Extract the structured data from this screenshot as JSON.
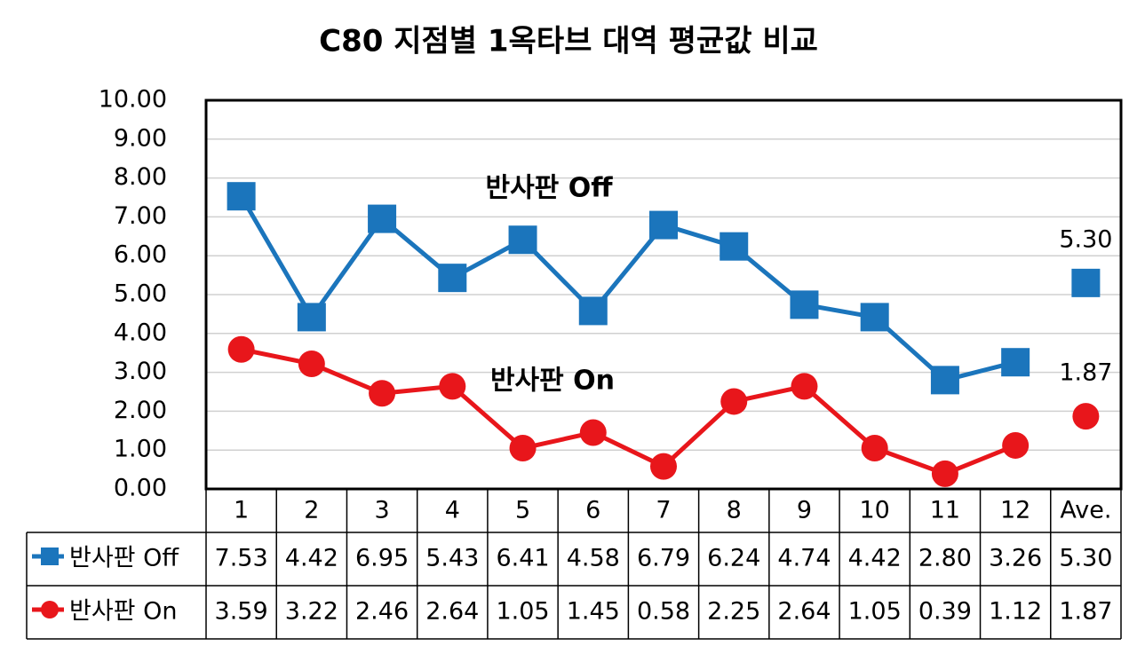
{
  "chart_data": {
    "type": "line",
    "title": "C80 지점별 1옥타브 대역 평균값 비교",
    "categories": [
      "1",
      "2",
      "3",
      "4",
      "5",
      "6",
      "7",
      "8",
      "9",
      "10",
      "11",
      "12",
      "Ave."
    ],
    "series": [
      {
        "name": "반사판 Off",
        "color": "#1b75bc",
        "marker": "square",
        "values": [
          7.53,
          4.42,
          6.95,
          5.43,
          6.41,
          4.58,
          6.79,
          6.24,
          4.74,
          4.42,
          2.8,
          3.26,
          5.3
        ],
        "value_labels": [
          "7.53",
          "4.42",
          "6.95",
          "5.43",
          "6.41",
          "4.58",
          "6.79",
          "6.24",
          "4.74",
          "4.42",
          "2.80",
          "3.26",
          "5.30"
        ]
      },
      {
        "name": "반사판 On",
        "color": "#e8161b",
        "marker": "circle",
        "values": [
          3.59,
          3.22,
          2.46,
          2.64,
          1.05,
          1.45,
          0.58,
          2.25,
          2.64,
          1.05,
          0.39,
          1.12,
          1.87
        ],
        "value_labels": [
          "3.59",
          "3.22",
          "2.46",
          "2.64",
          "1.05",
          "1.45",
          "0.58",
          "2.25",
          "2.64",
          "1.05",
          "0.39",
          "1.12",
          "1.87"
        ]
      }
    ],
    "annotations": [
      "반사판 Off",
      "반사판 On"
    ],
    "ylim": [
      0,
      10
    ],
    "yticks": [
      {
        "value": 0,
        "label": "0.00"
      },
      {
        "value": 1,
        "label": "1.00"
      },
      {
        "value": 2,
        "label": "2.00"
      },
      {
        "value": 3,
        "label": "3.00"
      },
      {
        "value": 4,
        "label": "4.00"
      },
      {
        "value": 5,
        "label": "5.00"
      },
      {
        "value": 6,
        "label": "6.00"
      },
      {
        "value": 7,
        "label": "7.00"
      },
      {
        "value": 8,
        "label": "8.00"
      },
      {
        "value": 9,
        "label": "9.00"
      },
      {
        "value": 10,
        "label": "10.00"
      }
    ],
    "grid": true
  }
}
